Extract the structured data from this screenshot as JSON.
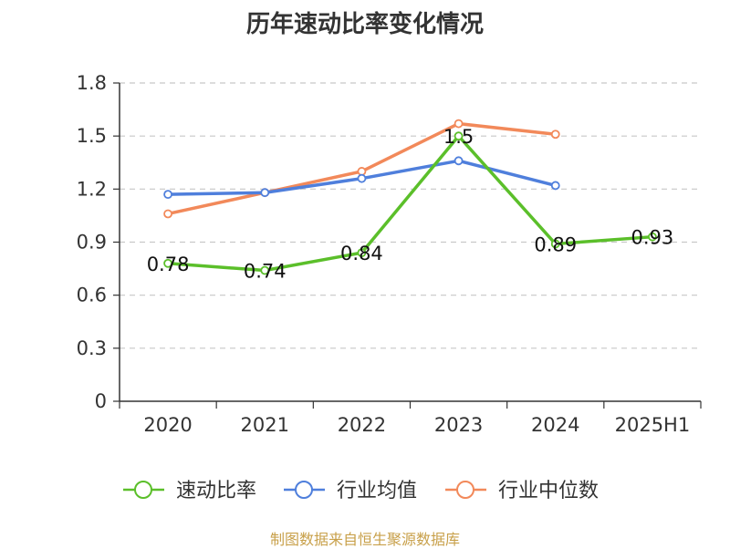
{
  "chart_data": {
    "type": "line",
    "title": "历年速动比率变化情况",
    "categories": [
      "2020",
      "2021",
      "2022",
      "2023",
      "2024",
      "2025H1"
    ],
    "ylim": [
      0,
      1.8
    ],
    "yticks": [
      "0",
      "0.3",
      "0.6",
      "0.9",
      "1.2",
      "1.5",
      "1.8"
    ],
    "grid": true,
    "legend_position": "bottom",
    "series": [
      {
        "name": "速动比率",
        "color": "#5bbf2a",
        "values": [
          0.78,
          0.74,
          0.84,
          1.5,
          0.89,
          0.93
        ],
        "labels": [
          "0.78",
          "0.74",
          "0.84",
          "1.5",
          "0.89",
          "0.93"
        ]
      },
      {
        "name": "行业均值",
        "color": "#4f7fdc",
        "values": [
          1.17,
          1.18,
          1.26,
          1.36,
          1.22,
          null
        ],
        "labels": []
      },
      {
        "name": "行业中位数",
        "color": "#f2895a",
        "values": [
          1.06,
          1.18,
          1.3,
          1.57,
          1.51,
          null
        ],
        "labels": []
      }
    ]
  },
  "footer": {
    "source": "制图数据来自恒生聚源数据库"
  }
}
